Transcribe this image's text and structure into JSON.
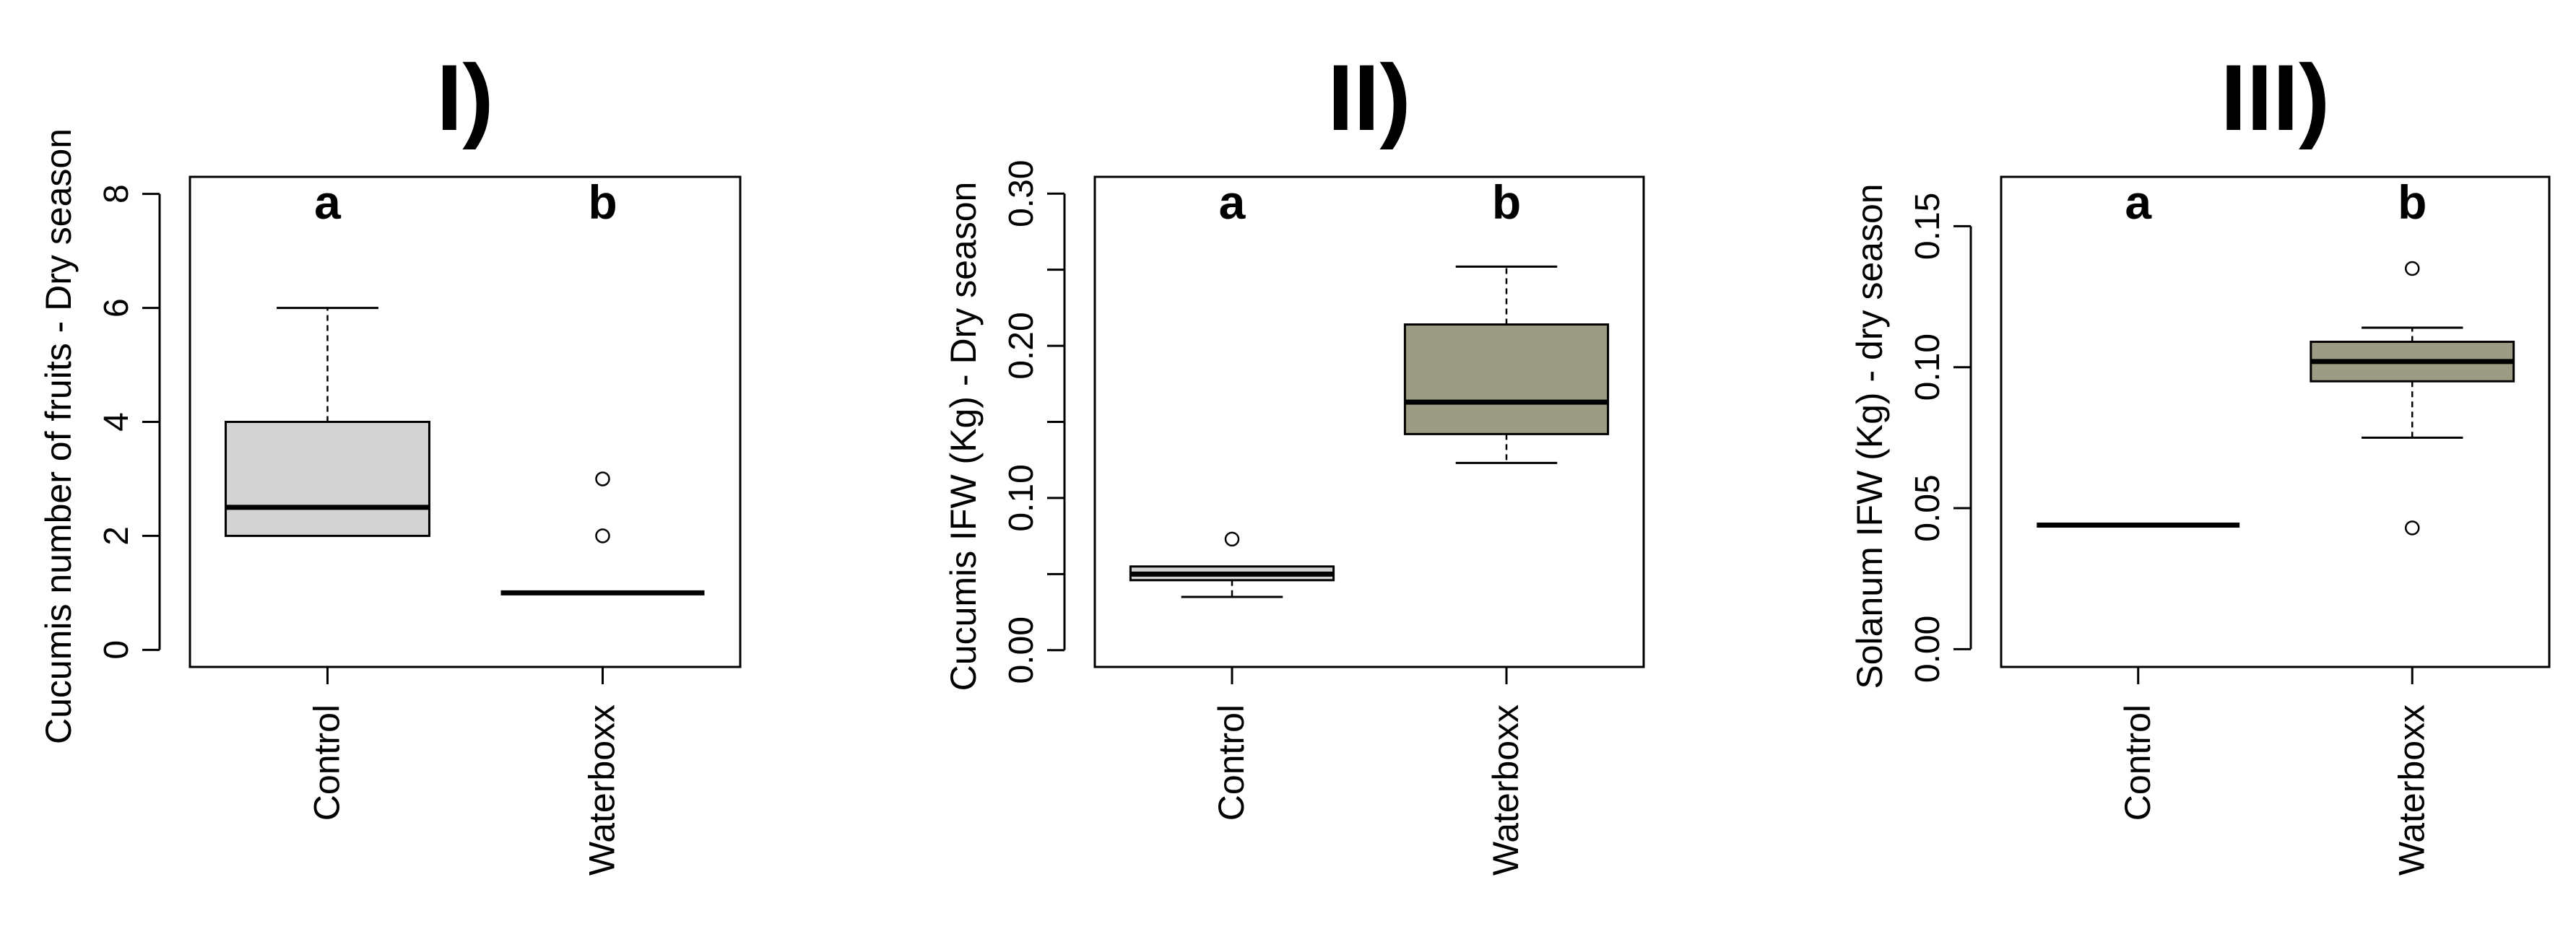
{
  "chart_data": [
    {
      "type": "box",
      "title": "I)",
      "ylabel": "Cucumis number of fruits - Dry season",
      "categories": [
        "Control",
        "Waterboxx"
      ],
      "group_letters": [
        "a",
        "b"
      ],
      "ylim": [
        -0.3,
        8.3
      ],
      "yticks": [
        0,
        2,
        4,
        6,
        8
      ],
      "yticklabels": [
        "0",
        "2",
        "4",
        "6",
        "8"
      ],
      "boxes": [
        {
          "min": 2,
          "q1": 2,
          "median": 2.5,
          "q3": 4,
          "max": 6,
          "outliers": [],
          "color": "#d3d3d3"
        },
        {
          "min": 1,
          "q1": 1,
          "median": 1,
          "q3": 1,
          "max": 1,
          "outliers": [
            2,
            3
          ],
          "color": "#d3d3d3"
        }
      ]
    },
    {
      "type": "box",
      "title": "II)",
      "ylabel": "Cucumis IFW (Kg) - Dry season",
      "categories": [
        "Control",
        "Waterboxx"
      ],
      "group_letters": [
        "a",
        "b"
      ],
      "ylim": [
        -0.011,
        0.311
      ],
      "yticks": [
        0,
        0.05,
        0.1,
        0.15,
        0.2,
        0.25,
        0.3
      ],
      "yticklabels": [
        "0.00",
        "",
        "0.10",
        "",
        "0.20",
        "",
        "0.30"
      ],
      "boxes": [
        {
          "min": 0.035,
          "q1": 0.046,
          "median": 0.05,
          "q3": 0.055,
          "max": 0.055,
          "outliers": [
            0.073
          ],
          "color": "#d3d3d3"
        },
        {
          "min": 0.123,
          "q1": 0.142,
          "median": 0.163,
          "q3": 0.214,
          "max": 0.252,
          "outliers": [],
          "color": "#9c9c84"
        }
      ]
    },
    {
      "type": "box",
      "title": "III)",
      "ylabel": "Solanum IFW (Kg) - dry season",
      "categories": [
        "Control",
        "Waterboxx"
      ],
      "group_letters": [
        "a",
        "b"
      ],
      "ylim": [
        -0.0063,
        0.1675
      ],
      "yticks": [
        0,
        0.05,
        0.1,
        0.15
      ],
      "yticklabels": [
        "0.00",
        "0.05",
        "0.10",
        "0.15"
      ],
      "boxes": [
        {
          "min": 0.044,
          "q1": 0.044,
          "median": 0.044,
          "q3": 0.044,
          "max": 0.044,
          "outliers": [],
          "color": "#d3d3d3"
        },
        {
          "min": 0.075,
          "q1": 0.095,
          "median": 0.102,
          "q3": 0.109,
          "max": 0.114,
          "outliers": [
            0.043,
            0.135
          ],
          "color": "#9c9c84"
        }
      ]
    }
  ]
}
